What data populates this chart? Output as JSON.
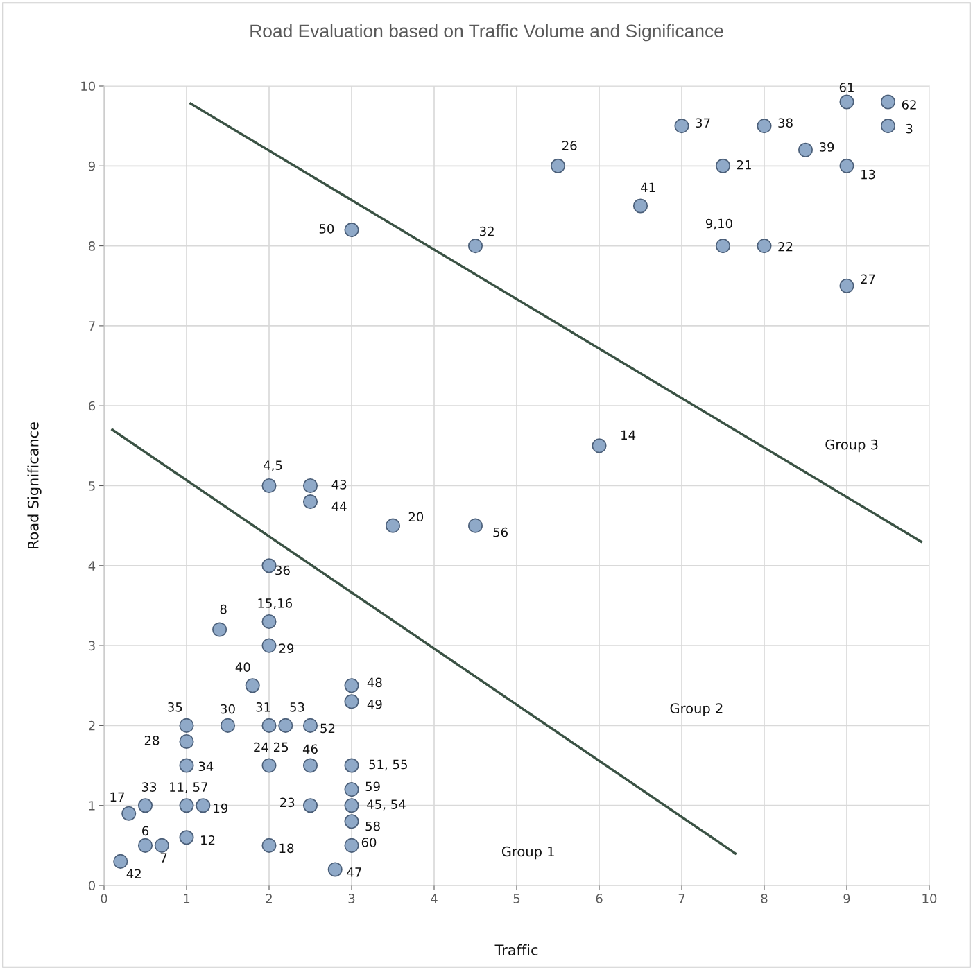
{
  "chart_data": {
    "type": "scatter",
    "title": "Road Evaluation based on Traffic Volume and Significance",
    "xlabel": "Traffic",
    "ylabel": "Road Significance",
    "xlim": [
      0,
      10
    ],
    "ylim": [
      0,
      10
    ],
    "xticks": [
      0,
      1,
      2,
      3,
      4,
      5,
      6,
      7,
      8,
      9,
      10
    ],
    "yticks": [
      0,
      1,
      2,
      3,
      4,
      5,
      6,
      7,
      8,
      9,
      10
    ],
    "grid": true,
    "series": [
      {
        "marker": "circle",
        "color": "#8fa9c8",
        "x": [
          9,
          9.5,
          7,
          8,
          9.5,
          8.5,
          5.5,
          7.5,
          9,
          6.5,
          3,
          4.5,
          7.5,
          8,
          9,
          6,
          2,
          2.5,
          2.5,
          3.5,
          4.5,
          2,
          1.4,
          2,
          2,
          1.8,
          3,
          3,
          1,
          1.5,
          2,
          2.2,
          2.5,
          1,
          1,
          2,
          2.5,
          3,
          3,
          0.3,
          0.5,
          1,
          1.2,
          2.5,
          3,
          3,
          0.5,
          0.7,
          1,
          2,
          3,
          0.2,
          2.8
        ],
        "values": [
          9.8,
          9.8,
          9.5,
          9.5,
          9.5,
          9.2,
          9,
          9,
          9,
          8.5,
          8.2,
          8,
          8,
          8,
          7.5,
          5.5,
          5,
          5,
          4.8,
          4.5,
          4.5,
          4,
          3.2,
          3.3,
          3,
          2.5,
          2.5,
          2.3,
          2,
          2,
          2,
          2,
          2,
          1.8,
          1.5,
          1.5,
          1.5,
          1.5,
          1.2,
          0.9,
          1,
          1,
          1,
          1,
          1,
          0.8,
          0.5,
          0.5,
          0.6,
          0.5,
          0.5,
          0.3,
          0.2
        ]
      },
      {
        "type": "line",
        "marker": "none",
        "color": "#3a5244",
        "x": [
          1.05,
          9.9
        ],
        "values": [
          9.78,
          4.3
        ]
      },
      {
        "type": "line",
        "marker": "none",
        "color": "#3a5244",
        "x": [
          0.1,
          7.65
        ],
        "values": [
          5.7,
          0.4
        ]
      }
    ],
    "annotations": [
      {
        "text": "61",
        "x": 9,
        "y": 9.8
      },
      {
        "text": "62",
        "x": 9.5,
        "y": 9.8
      },
      {
        "text": "37",
        "x": 7,
        "y": 9.5
      },
      {
        "text": "38",
        "x": 8,
        "y": 9.5
      },
      {
        "text": "3",
        "x": 9.5,
        "y": 9.5
      },
      {
        "text": "39",
        "x": 8.5,
        "y": 9.2
      },
      {
        "text": "26",
        "x": 5.5,
        "y": 9
      },
      {
        "text": "21",
        "x": 7.5,
        "y": 9
      },
      {
        "text": "13",
        "x": 9,
        "y": 9
      },
      {
        "text": "41",
        "x": 6.5,
        "y": 8.5
      },
      {
        "text": "50",
        "x": 3,
        "y": 8.2
      },
      {
        "text": "32",
        "x": 4.5,
        "y": 8
      },
      {
        "text": "9,10",
        "x": 7.5,
        "y": 8
      },
      {
        "text": "22",
        "x": 8,
        "y": 8
      },
      {
        "text": "27",
        "x": 9,
        "y": 7.5
      },
      {
        "text": "14",
        "x": 6,
        "y": 5.5
      },
      {
        "text": "4,5",
        "x": 2,
        "y": 5
      },
      {
        "text": "43",
        "x": 2.5,
        "y": 5
      },
      {
        "text": "44",
        "x": 2.5,
        "y": 4.8
      },
      {
        "text": "20",
        "x": 3.5,
        "y": 4.5
      },
      {
        "text": "56",
        "x": 4.5,
        "y": 4.5
      },
      {
        "text": "36",
        "x": 2,
        "y": 4
      },
      {
        "text": "8",
        "x": 1.4,
        "y": 3.2
      },
      {
        "text": "15,16",
        "x": 2,
        "y": 3.3
      },
      {
        "text": "29",
        "x": 2,
        "y": 3
      },
      {
        "text": "40",
        "x": 1.8,
        "y": 2.5
      },
      {
        "text": "48",
        "x": 3,
        "y": 2.5
      },
      {
        "text": "49",
        "x": 3,
        "y": 2.3
      },
      {
        "text": "35",
        "x": 1,
        "y": 2
      },
      {
        "text": "30",
        "x": 1.5,
        "y": 2
      },
      {
        "text": "31",
        "x": 2,
        "y": 2
      },
      {
        "text": "53",
        "x": 2.2,
        "y": 2
      },
      {
        "text": "52",
        "x": 2.5,
        "y": 2
      },
      {
        "text": "28",
        "x": 1,
        "y": 1.8
      },
      {
        "text": "34",
        "x": 1,
        "y": 1.5
      },
      {
        "text": "24 25",
        "x": 2,
        "y": 1.5
      },
      {
        "text": "46",
        "x": 2.5,
        "y": 1.5
      },
      {
        "text": "51, 55",
        "x": 3,
        "y": 1.5
      },
      {
        "text": "59",
        "x": 3,
        "y": 1.2
      },
      {
        "text": "17",
        "x": 0.3,
        "y": 0.9
      },
      {
        "text": "33",
        "x": 0.5,
        "y": 1
      },
      {
        "text": "11, 57",
        "x": 1,
        "y": 1
      },
      {
        "text": "19",
        "x": 1.2,
        "y": 1
      },
      {
        "text": "23",
        "x": 2.5,
        "y": 1
      },
      {
        "text": "45, 54",
        "x": 3,
        "y": 1
      },
      {
        "text": "58",
        "x": 3,
        "y": 0.8
      },
      {
        "text": "6",
        "x": 0.5,
        "y": 0.5
      },
      {
        "text": "7",
        "x": 0.7,
        "y": 0.5
      },
      {
        "text": "12",
        "x": 1,
        "y": 0.6
      },
      {
        "text": "18",
        "x": 2,
        "y": 0.5
      },
      {
        "text": "60",
        "x": 3,
        "y": 0.5
      },
      {
        "text": "42",
        "x": 0.2,
        "y": 0.3
      },
      {
        "text": "47",
        "x": 2.8,
        "y": 0.2
      },
      "Group 3",
      "Group 2",
      "Group 1"
    ]
  }
}
